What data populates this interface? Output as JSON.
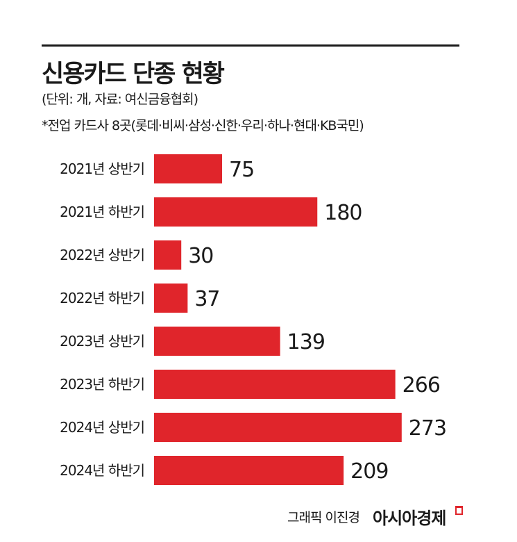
{
  "chart_data": {
    "type": "bar",
    "orientation": "horizontal",
    "title": "신용카드 단종 현황",
    "subtitle": "(단위: 개, 자료: 여신금융협회)",
    "note": "*전업 카드사 8곳(롯데·비씨·삼성·신한·우리·하나·현대·KB국민)",
    "categories": [
      "2021년 상반기",
      "2021년 하반기",
      "2022년 상반기",
      "2022년 하반기",
      "2023년 상반기",
      "2023년 하반기",
      "2024년 상반기",
      "2024년 하반기"
    ],
    "values": [
      75,
      180,
      30,
      37,
      139,
      266,
      273,
      209
    ],
    "bar_color": "#e0252b",
    "grid": false,
    "legend": "none"
  },
  "footer": {
    "credit": "그래픽 이진경",
    "logo": "아시아경제"
  }
}
